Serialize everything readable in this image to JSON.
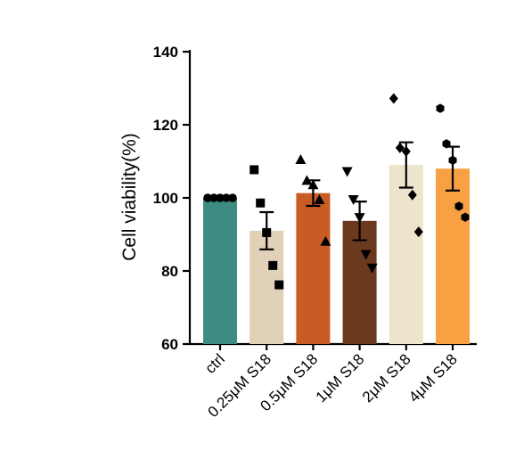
{
  "chart_data": {
    "type": "bar",
    "title": "",
    "xlabel": "",
    "ylabel": "Cell viability(%)",
    "ylim": [
      60,
      140
    ],
    "yticks": [
      60,
      80,
      100,
      120,
      140
    ],
    "grid": false,
    "categories": [
      "ctrl",
      "0.25μM S18",
      "0.5μM S18",
      "1μM S18",
      "2μM S18",
      "4μM S18"
    ],
    "values": [
      100,
      91,
      101.3,
      93.7,
      109,
      108
    ],
    "error": [
      0.2,
      5.1,
      3.5,
      5.3,
      6.2,
      6
    ],
    "colors": [
      "#3d8c82",
      "#e2d1b9",
      "#c95b24",
      "#6b3a1e",
      "#ece5cc",
      "#f7a143"
    ],
    "markers": [
      "circle",
      "square",
      "triangle",
      "triangle-down",
      "diamond",
      "hexagon"
    ],
    "points": [
      [
        100,
        100,
        100,
        100,
        100
      ],
      [
        107.7,
        98.6,
        90.5,
        81.5,
        76.2
      ],
      [
        110.5,
        104.8,
        103.6,
        99.5,
        88.1
      ],
      [
        107.2,
        99.5,
        94.6,
        84.5,
        80.8
      ],
      [
        127.2,
        113.7,
        112.7,
        100.8,
        90.7
      ],
      [
        124.5,
        114.8,
        110.3,
        97.7,
        94.7
      ]
    ]
  }
}
